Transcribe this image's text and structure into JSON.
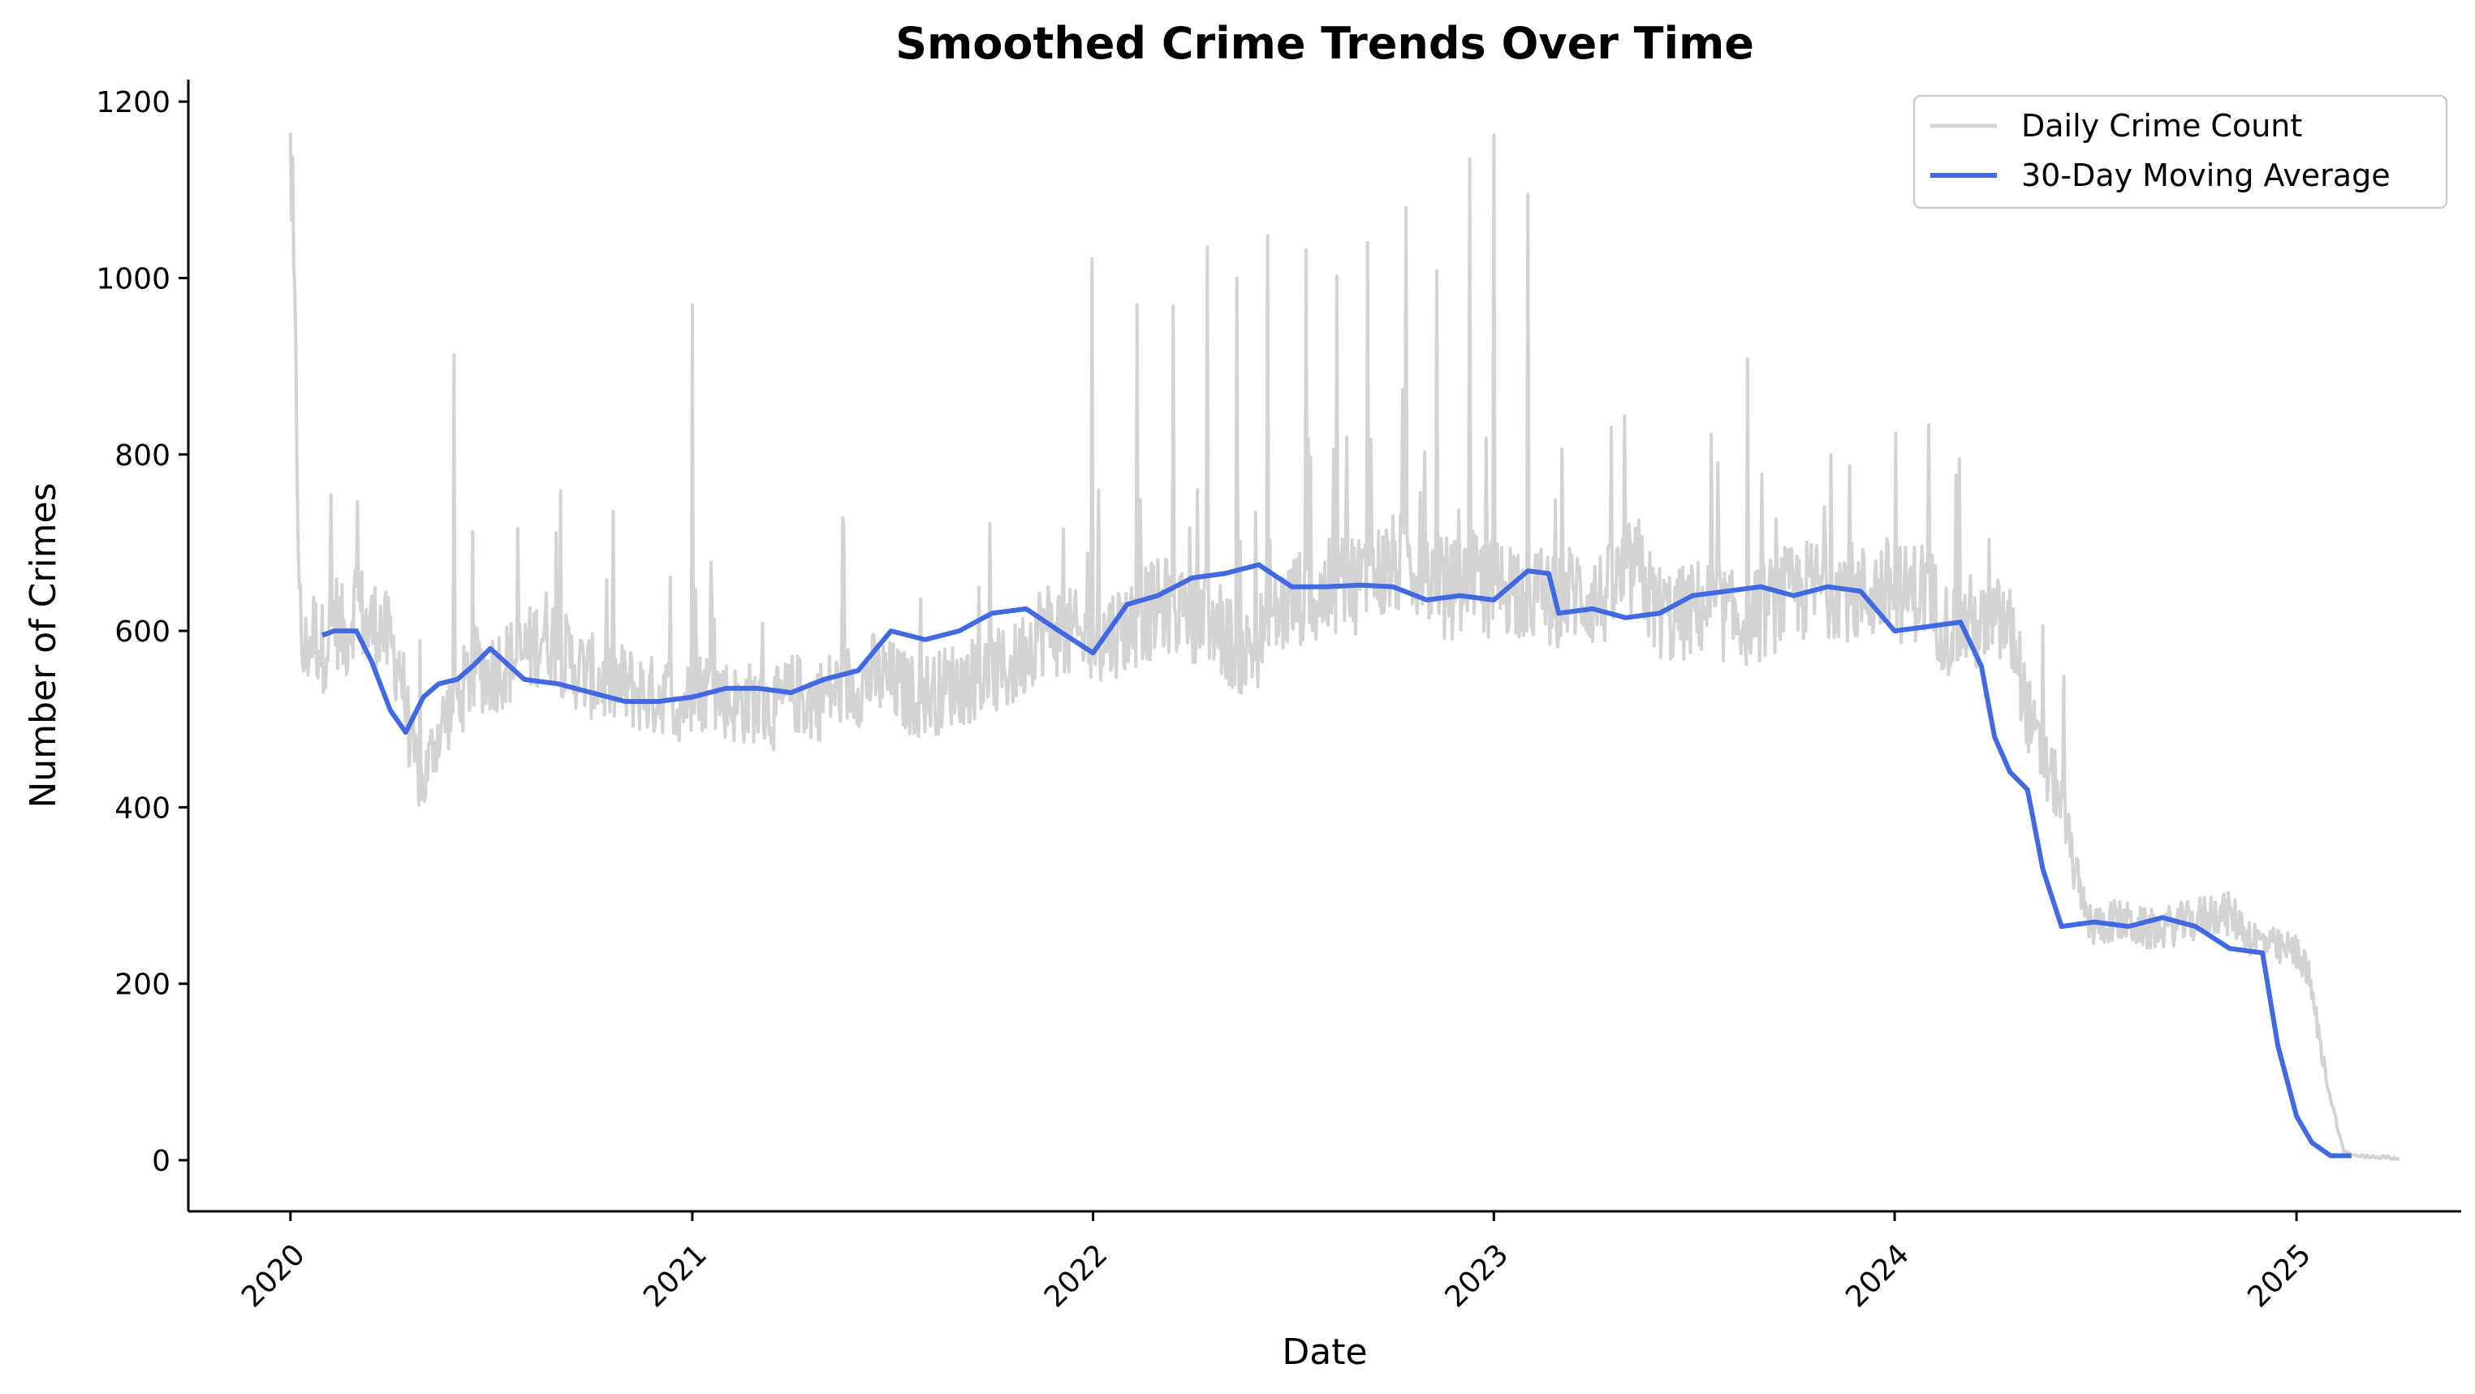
{
  "chart_data": {
    "type": "line",
    "title": "Smoothed Crime Trends Over Time",
    "xlabel": "Date",
    "ylabel": "Number of Crimes",
    "xlim": [
      "2019-09-30",
      "2025-05-31"
    ],
    "ylim": [
      -58,
      1225
    ],
    "x_ticks": [
      "2020",
      "2021",
      "2022",
      "2023",
      "2024",
      "2025"
    ],
    "y_ticks": [
      0,
      200,
      400,
      600,
      800,
      1000,
      1200
    ],
    "grid": false,
    "legend_position": "top-right",
    "colors": {
      "daily": "#d3d3d3",
      "moving_average": "#4169e1",
      "axis": "#000000"
    },
    "series": [
      {
        "name": "Daily Crime Count",
        "style": "thin light-grey line, daily values (values listed at 10-day sampling, with spikes noted)",
        "sampled_every_days": 10,
        "start_date": "2020-01-01",
        "values": [
          1165,
          560,
          600,
          580,
          620,
          590,
          640,
          600,
          610,
          585,
          560,
          470,
          420,
          470,
          500,
          520,
          540,
          560,
          550,
          560,
          565,
          570,
          580,
          600,
          590,
          570,
          560,
          550,
          545,
          540,
          540,
          535,
          530,
          525,
          530,
          520,
          520,
          530,
          535,
          530,
          520,
          515,
          520,
          515,
          510,
          520,
          530,
          520,
          520,
          530,
          535,
          540,
          540,
          550,
          545,
          540,
          530,
          525,
          530,
          530,
          540,
          540,
          545,
          550,
          550,
          555,
          560,
          580,
          600,
          605,
          600,
          595,
          590,
          585,
          590,
          600,
          605,
          610,
          620,
          625,
          630,
          625,
          620,
          620,
          610,
          600,
          580,
          575,
          585,
          610,
          620,
          630,
          640,
          630,
          640,
          650,
          660,
          655,
          660,
          665,
          670,
          675,
          680,
          670,
          660,
          650,
          648,
          652,
          655,
          650,
          648,
          655,
          650,
          645,
          640,
          630,
          640,
          645,
          640,
          635,
          640,
          655,
          665,
          670,
          630,
          620,
          615,
          620,
          625,
          630,
          625,
          615,
          610,
          618,
          622,
          630,
          638,
          640,
          645,
          650,
          648,
          652,
          645,
          640,
          645,
          650,
          648,
          640,
          645,
          650,
          620,
          600,
          605,
          610,
          600,
          605,
          610,
          590,
          520,
          470,
          440,
          420,
          360,
          300,
          265,
          268,
          272,
          270,
          265,
          262,
          260,
          265,
          268,
          270,
          275,
          280,
          282,
          275,
          260,
          250,
          245,
          240,
          238,
          235,
          200,
          120,
          60,
          10,
          5,
          4,
          4,
          3,
          2
        ],
        "spikes": [
          {
            "date": "2020-01-01",
            "value": 1165
          },
          {
            "date": "2020-05-29",
            "value": 913
          },
          {
            "date": "2021-01-01",
            "value": 970
          },
          {
            "date": "2021-12-31",
            "value": 1022
          },
          {
            "date": "2022-02-10",
            "value": 970
          },
          {
            "date": "2022-03-15",
            "value": 968
          },
          {
            "date": "2022-04-15",
            "value": 1035
          },
          {
            "date": "2022-05-12",
            "value": 1000
          },
          {
            "date": "2022-06-09",
            "value": 1048
          },
          {
            "date": "2022-07-14",
            "value": 1032
          },
          {
            "date": "2022-08-11",
            "value": 1002
          },
          {
            "date": "2022-09-08",
            "value": 1040
          },
          {
            "date": "2022-10-13",
            "value": 1080
          },
          {
            "date": "2022-11-10",
            "value": 1008
          },
          {
            "date": "2022-12-10",
            "value": 1135
          },
          {
            "date": "2023-01-01",
            "value": 1162
          },
          {
            "date": "2023-02-01",
            "value": 1095
          },
          {
            "date": "2023-08-20",
            "value": 908
          },
          {
            "date": "2024-02-29",
            "value": 795
          }
        ]
      },
      {
        "name": "30-Day Moving Average",
        "style": "blue line",
        "dates": [
          "2020-01-30",
          "2020-02-10",
          "2020-03-01",
          "2020-03-15",
          "2020-04-01",
          "2020-04-15",
          "2020-05-01",
          "2020-05-15",
          "2020-06-01",
          "2020-06-15",
          "2020-07-01",
          "2020-08-01",
          "2020-09-01",
          "2020-10-01",
          "2020-11-01",
          "2020-12-01",
          "2021-01-01",
          "2021-02-01",
          "2021-03-01",
          "2021-04-01",
          "2021-05-01",
          "2021-06-01",
          "2021-07-01",
          "2021-08-01",
          "2021-09-01",
          "2021-10-01",
          "2021-11-01",
          "2021-12-01",
          "2022-01-01",
          "2022-02-01",
          "2022-03-01",
          "2022-04-01",
          "2022-05-01",
          "2022-06-01",
          "2022-07-01",
          "2022-08-01",
          "2022-09-01",
          "2022-10-01",
          "2022-11-01",
          "2022-12-01",
          "2023-01-01",
          "2023-02-01",
          "2023-02-20",
          "2023-03-01",
          "2023-04-01",
          "2023-05-01",
          "2023-06-01",
          "2023-07-01",
          "2023-08-01",
          "2023-09-01",
          "2023-10-01",
          "2023-11-01",
          "2023-12-01",
          "2024-01-01",
          "2024-02-01",
          "2024-03-01",
          "2024-03-20",
          "2024-04-01",
          "2024-04-15",
          "2024-05-01",
          "2024-05-15",
          "2024-06-01",
          "2024-07-01",
          "2024-08-01",
          "2024-09-01",
          "2024-10-01",
          "2024-11-01",
          "2024-12-01",
          "2024-12-15",
          "2025-01-01",
          "2025-01-15",
          "2025-02-01",
          "2025-02-20"
        ],
        "values": [
          595,
          600,
          600,
          565,
          510,
          485,
          525,
          540,
          545,
          560,
          580,
          545,
          540,
          530,
          520,
          520,
          525,
          535,
          535,
          530,
          545,
          555,
          600,
          590,
          600,
          620,
          625,
          600,
          575,
          630,
          640,
          660,
          665,
          675,
          650,
          650,
          652,
          650,
          635,
          640,
          635,
          668,
          665,
          620,
          625,
          615,
          620,
          640,
          645,
          650,
          640,
          650,
          645,
          600,
          605,
          610,
          560,
          480,
          440,
          420,
          330,
          265,
          270,
          265,
          275,
          265,
          240,
          235,
          130,
          50,
          20,
          5,
          5
        ]
      }
    ]
  }
}
